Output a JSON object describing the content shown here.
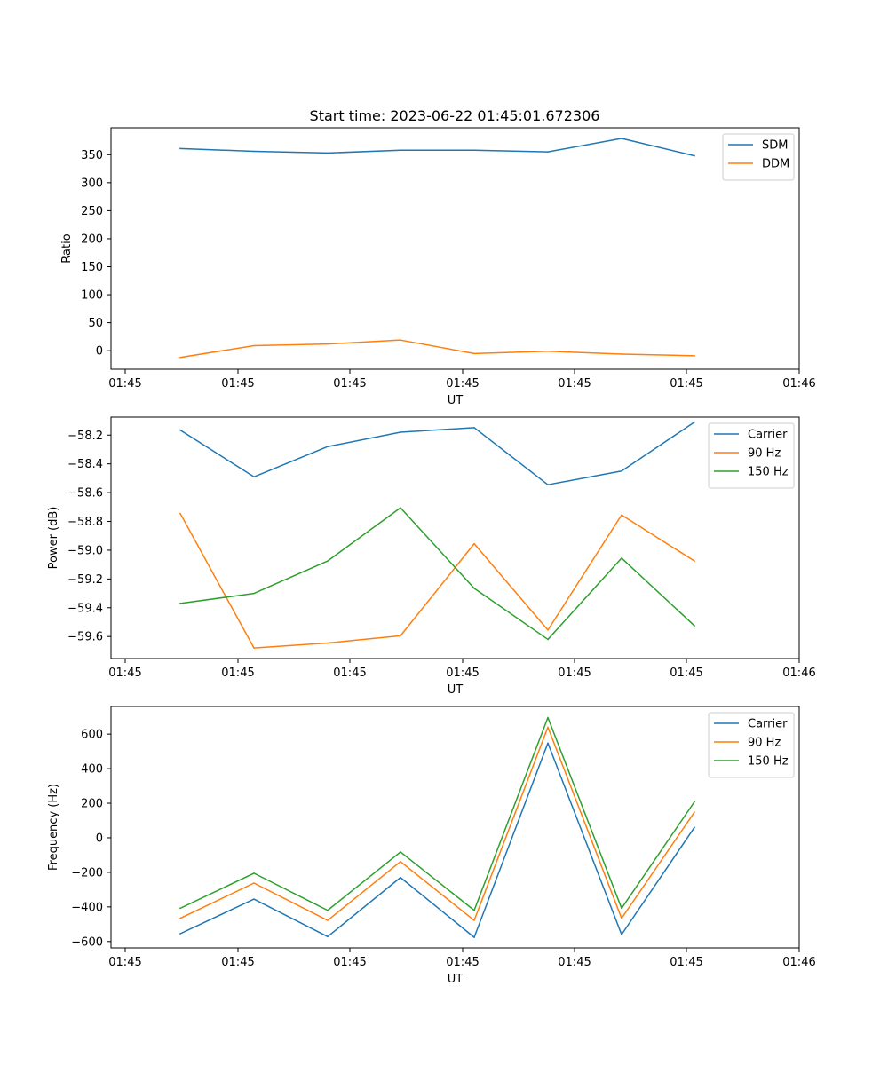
{
  "figure": {
    "title": "Start time: 2023-06-22 01:45:01.672306"
  },
  "chart_data": [
    {
      "type": "line",
      "title": "Start time: 2023-06-22 01:45:01.672306",
      "xlabel": "UT",
      "ylabel": "Ratio",
      "x_tick_labels": [
        "01:45",
        "01:45",
        "01:45",
        "01:45",
        "01:45",
        "01:45",
        "01:46"
      ],
      "y_ticks": [
        0,
        50,
        100,
        150,
        200,
        250,
        300,
        350
      ],
      "ylim": [
        -33,
        398
      ],
      "grid": false,
      "legend": "upper right",
      "series": [
        {
          "name": "SDM",
          "color": "#1f77b4",
          "values": [
            361,
            356,
            353,
            358,
            358,
            355,
            379,
            348
          ]
        },
        {
          "name": "DDM",
          "color": "#ff7f0e",
          "values": [
            -12,
            9,
            12,
            19,
            -5,
            -1,
            -6,
            -9
          ]
        }
      ]
    },
    {
      "type": "line",
      "xlabel": "UT",
      "ylabel": "Power (dB)",
      "x_tick_labels": [
        "01:45",
        "01:45",
        "01:45",
        "01:45",
        "01:45",
        "01:45",
        "01:46"
      ],
      "y_ticks": [
        -59.6,
        -59.4,
        -59.2,
        -59.0,
        -58.8,
        -58.6,
        -58.4,
        -58.2
      ],
      "y_tick_labels": [
        "−59.6",
        "−59.4",
        "−59.2",
        "−59.0",
        "−58.8",
        "−58.6",
        "−58.4",
        "−58.2"
      ],
      "ylim": [
        -59.753,
        -58.075
      ],
      "grid": false,
      "legend": "upper right",
      "series": [
        {
          "name": "Carrier",
          "color": "#1f77b4",
          "values": [
            -58.165,
            -58.49,
            -58.28,
            -58.18,
            -58.148,
            -58.545,
            -58.45,
            -58.11
          ]
        },
        {
          "name": "90 Hz",
          "color": "#ff7f0e",
          "values": [
            -58.745,
            -59.68,
            -59.645,
            -59.595,
            -58.955,
            -59.555,
            -58.755,
            -59.075
          ]
        },
        {
          "name": "150 Hz",
          "color": "#2ca02c",
          "values": [
            -59.37,
            -59.3,
            -59.075,
            -58.705,
            -59.265,
            -59.62,
            -59.055,
            -59.525
          ]
        }
      ]
    },
    {
      "type": "line",
      "xlabel": "UT",
      "ylabel": "Frequency (Hz)",
      "x_tick_labels": [
        "01:45",
        "01:45",
        "01:45",
        "01:45",
        "01:45",
        "01:45",
        "01:46"
      ],
      "y_ticks": [
        -600,
        -400,
        -200,
        0,
        200,
        400,
        600
      ],
      "y_tick_labels": [
        "−600",
        "−400",
        "−200",
        "0",
        "200",
        "400",
        "600"
      ],
      "ylim": [
        -637,
        760
      ],
      "grid": false,
      "legend": "upper right",
      "series": [
        {
          "name": "Carrier",
          "color": "#1f77b4",
          "values": [
            -555,
            -355,
            -572,
            -230,
            -576,
            548,
            -560,
            60
          ]
        },
        {
          "name": "90 Hz",
          "color": "#ff7f0e",
          "values": [
            -466,
            -262,
            -478,
            -138,
            -478,
            640,
            -466,
            148
          ]
        },
        {
          "name": "150 Hz",
          "color": "#2ca02c",
          "values": [
            -408,
            -205,
            -420,
            -82,
            -420,
            696,
            -408,
            208
          ]
        }
      ]
    }
  ]
}
